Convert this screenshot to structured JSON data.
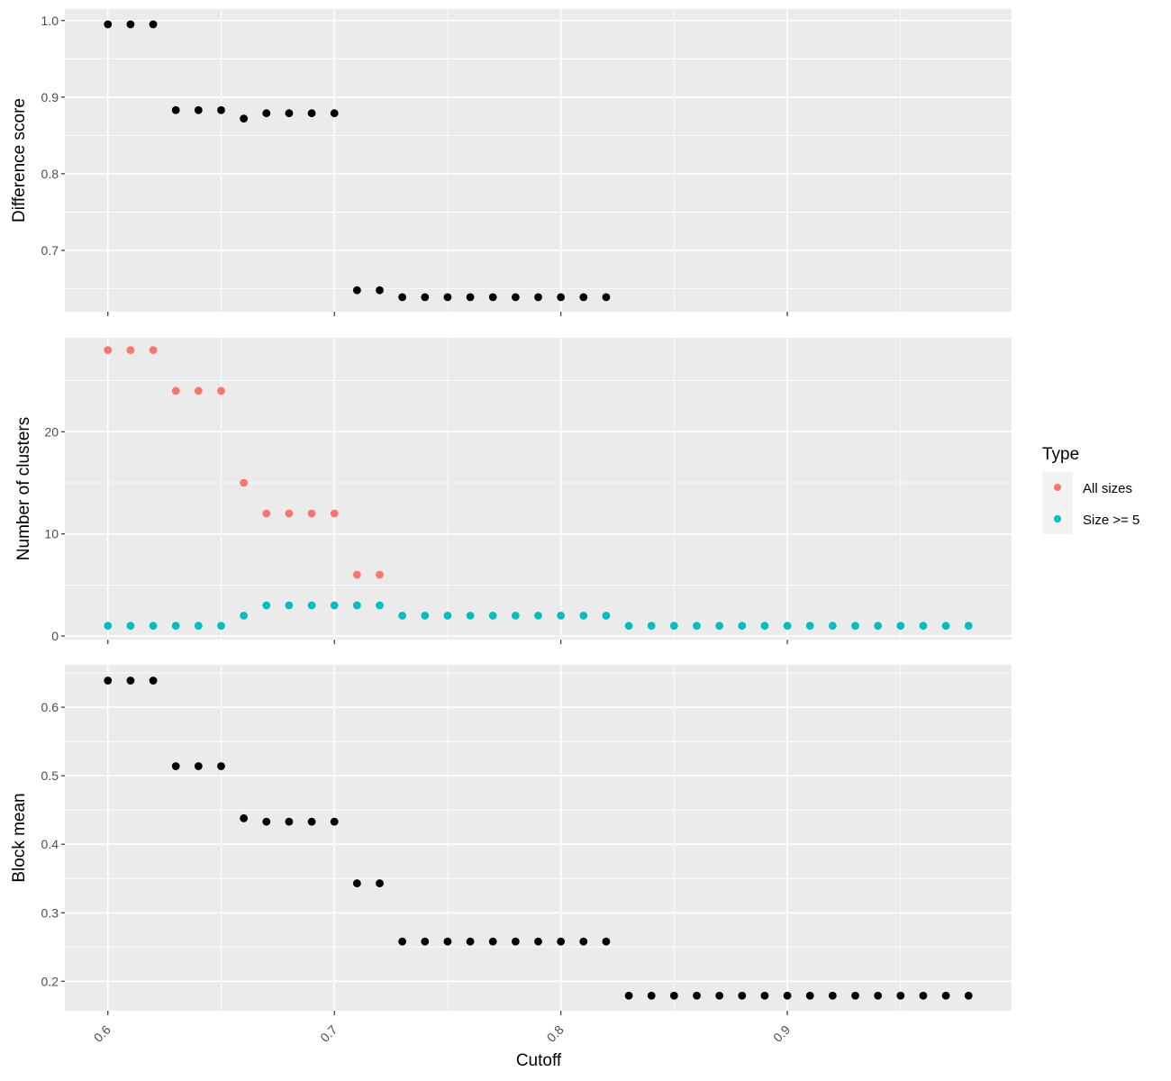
{
  "chart_data": [
    {
      "type": "scatter",
      "panel": "top",
      "ylabel": "Difference score",
      "ylim": [
        0.62,
        1.015
      ],
      "yticks": [
        {
          "value": 0.7,
          "label": "0.7"
        },
        {
          "value": 0.8,
          "label": "0.8"
        },
        {
          "value": 0.9,
          "label": "0.9"
        },
        {
          "value": 1.0,
          "label": "1.0"
        }
      ],
      "ygrid_minor": [
        0.65,
        0.75,
        0.85,
        0.95
      ],
      "color": "#000000",
      "x": [
        0.6,
        0.61,
        0.62,
        0.63,
        0.64,
        0.65,
        0.66,
        0.67,
        0.68,
        0.69,
        0.7,
        0.71,
        0.72,
        0.73,
        0.74,
        0.75,
        0.76,
        0.77,
        0.78,
        0.79,
        0.8,
        0.81,
        0.82
      ],
      "y": [
        0.995,
        0.995,
        0.995,
        0.883,
        0.883,
        0.883,
        0.872,
        0.879,
        0.879,
        0.879,
        0.879,
        0.648,
        0.648,
        0.639,
        0.639,
        0.639,
        0.639,
        0.639,
        0.639,
        0.639,
        0.639,
        0.639,
        0.639
      ]
    },
    {
      "type": "scatter",
      "panel": "middle",
      "ylabel": "Number of clusters",
      "ylim": [
        -0.35,
        29.2
      ],
      "yticks": [
        {
          "value": 0,
          "label": "0"
        },
        {
          "value": 10,
          "label": "10"
        },
        {
          "value": 20,
          "label": "20"
        }
      ],
      "ygrid_minor": [
        5,
        15,
        25
      ],
      "series": [
        {
          "name": "All sizes",
          "color": "#F8766D",
          "x": [
            0.6,
            0.61,
            0.62,
            0.63,
            0.64,
            0.65,
            0.66,
            0.67,
            0.68,
            0.69,
            0.7,
            0.71,
            0.72
          ],
          "y": [
            28,
            28,
            28,
            24,
            24,
            24,
            15,
            12,
            12,
            12,
            12,
            6,
            6
          ]
        },
        {
          "name": "Size >= 5",
          "color": "#00BFC4",
          "x": [
            0.6,
            0.61,
            0.62,
            0.63,
            0.64,
            0.65,
            0.66,
            0.67,
            0.68,
            0.69,
            0.7,
            0.71,
            0.72,
            0.73,
            0.74,
            0.75,
            0.76,
            0.77,
            0.78,
            0.79,
            0.8,
            0.81,
            0.82,
            0.83,
            0.84,
            0.85,
            0.86,
            0.87,
            0.88,
            0.89,
            0.9,
            0.91,
            0.92,
            0.93,
            0.94,
            0.95,
            0.96,
            0.97,
            0.98
          ],
          "y": [
            1,
            1,
            1,
            1,
            1,
            1,
            2,
            3,
            3,
            3,
            3,
            3,
            3,
            2,
            2,
            2,
            2,
            2,
            2,
            2,
            2,
            2,
            2,
            1,
            1,
            1,
            1,
            1,
            1,
            1,
            1,
            1,
            1,
            1,
            1,
            1,
            1,
            1,
            1
          ]
        }
      ]
    },
    {
      "type": "scatter",
      "panel": "bottom",
      "ylabel": "Block mean",
      "xlabel": "Cutoff",
      "ylim": [
        0.157,
        0.662
      ],
      "yticks": [
        {
          "value": 0.2,
          "label": "0.2"
        },
        {
          "value": 0.3,
          "label": "0.3"
        },
        {
          "value": 0.4,
          "label": "0.4"
        },
        {
          "value": 0.5,
          "label": "0.5"
        },
        {
          "value": 0.6,
          "label": "0.6"
        }
      ],
      "ygrid_minor": [
        0.25,
        0.35,
        0.45,
        0.55,
        0.65
      ],
      "color": "#000000",
      "x": [
        0.6,
        0.61,
        0.62,
        0.63,
        0.64,
        0.65,
        0.66,
        0.67,
        0.68,
        0.69,
        0.7,
        0.71,
        0.72,
        0.73,
        0.74,
        0.75,
        0.76,
        0.77,
        0.78,
        0.79,
        0.8,
        0.81,
        0.82,
        0.83,
        0.84,
        0.85,
        0.86,
        0.87,
        0.88,
        0.89,
        0.9,
        0.91,
        0.92,
        0.93,
        0.94,
        0.95,
        0.96,
        0.97,
        0.98
      ],
      "y": [
        0.639,
        0.639,
        0.639,
        0.514,
        0.514,
        0.514,
        0.438,
        0.433,
        0.433,
        0.433,
        0.433,
        0.343,
        0.343,
        0.258,
        0.258,
        0.258,
        0.258,
        0.258,
        0.258,
        0.258,
        0.258,
        0.258,
        0.258,
        0.179,
        0.179,
        0.179,
        0.179,
        0.179,
        0.179,
        0.179,
        0.179,
        0.179,
        0.179,
        0.179,
        0.179,
        0.179,
        0.179,
        0.179,
        0.179
      ]
    }
  ],
  "x_axis": {
    "label": "Cutoff",
    "xlim": [
      0.581,
      0.999
    ],
    "ticks": [
      {
        "value": 0.6,
        "label": "0.6"
      },
      {
        "value": 0.7,
        "label": "0.7"
      },
      {
        "value": 0.8,
        "label": "0.8"
      },
      {
        "value": 0.9,
        "label": "0.9"
      }
    ],
    "grid_minor": [
      0.65,
      0.75,
      0.85,
      0.95
    ]
  },
  "legend": {
    "title": "Type",
    "placement": "right",
    "items": [
      {
        "label": "All sizes",
        "color": "#F8766D"
      },
      {
        "label": "Size >= 5",
        "color": "#00BFC4"
      }
    ]
  },
  "style": {
    "panel_bg": "#EBEBEB",
    "grid": "#FFFFFF",
    "tick_color": "#333333"
  }
}
